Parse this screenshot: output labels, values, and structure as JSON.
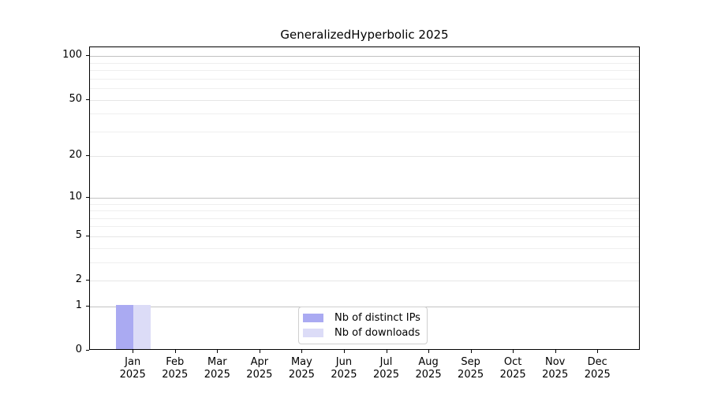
{
  "chart_data": {
    "type": "bar",
    "title": "GeneralizedHyperbolic 2025",
    "categories": [
      "Jan",
      "Feb",
      "Mar",
      "Apr",
      "May",
      "Jun",
      "Jul",
      "Aug",
      "Sep",
      "Oct",
      "Nov",
      "Dec"
    ],
    "category_year": "2025",
    "series": [
      {
        "name": "Nb of distinct IPs",
        "color": "#aaaaf2",
        "values": [
          1,
          0,
          0,
          0,
          0,
          0,
          0,
          0,
          0,
          0,
          0,
          0
        ]
      },
      {
        "name": "Nb of downloads",
        "color": "#dcdcf7",
        "values": [
          1,
          0,
          0,
          0,
          0,
          0,
          0,
          0,
          0,
          0,
          0,
          0
        ]
      }
    ],
    "y_axis": {
      "scale": "log10(value+1)",
      "ticks": [
        0,
        1,
        2,
        5,
        10,
        20,
        50,
        100
      ],
      "minor_ticks": [
        3,
        4,
        6,
        7,
        8,
        9,
        30,
        40,
        60,
        70,
        80,
        90
      ],
      "ylim": [
        0,
        115
      ]
    },
    "grid": true,
    "legend_position": "bottom-center"
  },
  "legend": {
    "items": [
      {
        "label": "Nb of distinct IPs",
        "color": "#aaaaf2"
      },
      {
        "label": "Nb of downloads",
        "color": "#dcdcf7"
      }
    ]
  },
  "colors": {
    "background": "#ffffff",
    "axis": "#000000",
    "grid_decade": "#c2c2c2",
    "grid_major": "#e6e6e6",
    "grid_minor": "#efefef",
    "legend_border": "#cfcfcf",
    "bar_distinct_ips": "#aaaaf2",
    "bar_downloads": "#dcdcf7"
  }
}
